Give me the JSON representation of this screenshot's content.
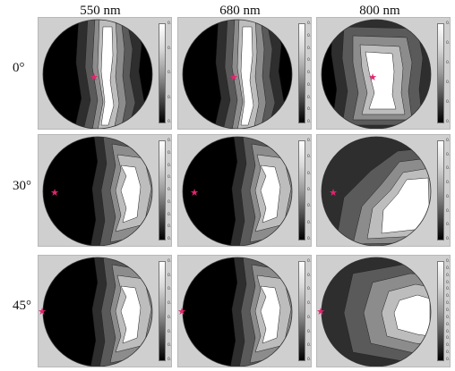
{
  "wavelengths": [
    "550 nm",
    "680 nm",
    "800 nm"
  ],
  "angles": [
    "0°",
    "30°",
    "45°"
  ],
  "star_color": "#e0266e",
  "chart_data": {
    "type": "heatmap",
    "rows": [
      "0°",
      "30°",
      "45°"
    ],
    "columns": [
      "550 nm",
      "680 nm",
      "800 nm"
    ],
    "grid": false,
    "colormap": "gray",
    "colorbars": [
      [
        {
          "min": 0.06,
          "max": 0.1,
          "ticks": [
            "0.1",
            "0.09",
            "0.08",
            "0.07",
            "0.06"
          ]
        },
        {
          "min": 0.02,
          "max": 0.06,
          "ticks": [
            "0.06",
            "0.055",
            "0.05",
            "0.045",
            "0.04",
            "0.035",
            "0.03",
            "0.025",
            "0.02"
          ]
        },
        {
          "min": 0.18,
          "max": 0.28,
          "ticks": [
            "0.28",
            "0.26",
            "0.24",
            "0.22",
            "0.2",
            "0.18"
          ]
        }
      ],
      [
        {
          "min": 0.04,
          "max": 0.12,
          "ticks": [
            "0.12",
            "0.11",
            "0.1",
            "0.09",
            "0.08",
            "0.07",
            "0.06",
            "0.05",
            "0.04"
          ]
        },
        {
          "min": 0.02,
          "max": 0.08,
          "ticks": [
            "0.08",
            "0.07",
            "0.06",
            "0.05",
            "0.04",
            "0.03",
            "0.02"
          ]
        },
        {
          "min": 0.16,
          "max": 0.3,
          "ticks": [
            "0.3",
            "0.28",
            "0.26",
            "0.24",
            "0.22",
            "0.2",
            "0.18",
            "0.16"
          ]
        }
      ],
      [
        {
          "min": 0.06,
          "max": 0.2,
          "ticks": [
            "0.2",
            "0.18",
            "0.16",
            "0.14",
            "0.12",
            "0.1",
            "0.08",
            "0.06"
          ]
        },
        {
          "min": 0.02,
          "max": 0.16,
          "ticks": [
            "0.16",
            "0.14",
            "0.12",
            "0.1",
            "0.08",
            "0.06",
            "0.04",
            "0.02"
          ]
        },
        {
          "min": 0.14,
          "max": 0.42,
          "ticks": [
            "0.42",
            "0.4",
            "0.38",
            "0.36",
            "0.34",
            "0.32",
            "0.3",
            "0.28",
            "0.26",
            "0.24",
            "0.22",
            "0.2",
            "0.18",
            "0.16",
            "0.14"
          ]
        }
      ]
    ]
  }
}
